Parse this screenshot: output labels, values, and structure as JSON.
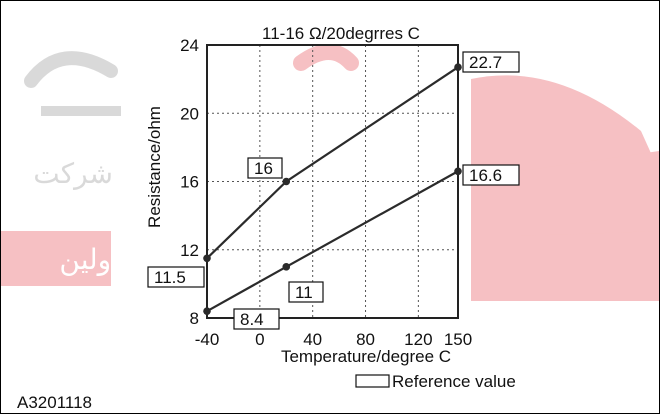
{
  "figure_id": "A3201118",
  "watermark": {
    "line1": "شرکت",
    "line2": "اولین",
    "colors": {
      "red": "#e0202a",
      "gray": "#7a7a7a"
    }
  },
  "chart_data": {
    "type": "line",
    "title": "11-16 Ω/20degrres C",
    "xlabel": "Temperature/degree C",
    "ylabel": "Resistance/ohm",
    "x_ticks": [
      "-40",
      "0",
      "40",
      "80",
      "120",
      "150"
    ],
    "y_ticks": [
      "8",
      "12",
      "16",
      "20",
      "24"
    ],
    "xlim": [
      -40,
      150
    ],
    "ylim": [
      8,
      24
    ],
    "grid": true,
    "legend_label": "Reference value",
    "series": [
      {
        "points": [
          [
            -40,
            11.5
          ],
          [
            20,
            16
          ],
          [
            150,
            22.7
          ]
        ]
      },
      {
        "points": [
          [
            -40,
            8.4
          ],
          [
            20,
            11
          ],
          [
            150,
            16.6
          ]
        ]
      }
    ],
    "annotations": [
      "22.7",
      "16",
      "11.5",
      "16.6",
      "11",
      "8.4"
    ]
  }
}
